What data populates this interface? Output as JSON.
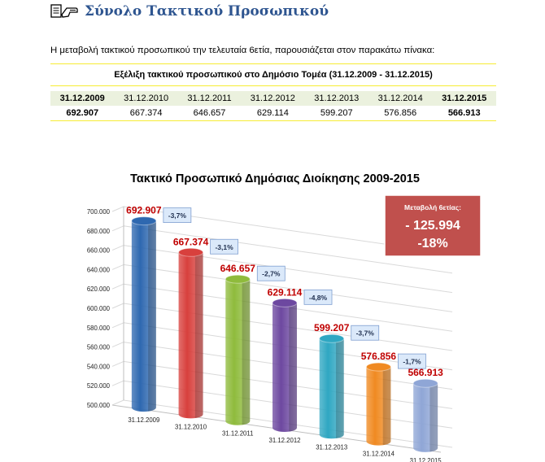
{
  "header": {
    "title": "Σύνολο Τακτικού Προσωπικού",
    "icon": "document-hand-icon"
  },
  "intro_text": "Η μεταβολή τακτικού προσωπικού την τελευταία 6ετία, παρουσιάζεται στον παρακάτω πίνακα:",
  "table": {
    "caption": "Εξέλιξη τακτικού προσωπικού στο Δημόσιο Τομέα (31.12.2009 - 31.12.2015)",
    "years": [
      "31.12.2009",
      "31.12.2010",
      "31.12.2011",
      "31.12.2012",
      "31.12.2013",
      "31.12.2014",
      "31.12.2015"
    ],
    "values": [
      "692.907",
      "667.374",
      "646.657",
      "629.114",
      "599.207",
      "576.856",
      "566.913"
    ],
    "bold_columns": [
      0,
      6
    ]
  },
  "chart_data": {
    "type": "bar",
    "title": "Τακτικό Προσωπικό Δημόσιας Διοίκησης 2009-2015",
    "xlabel": "",
    "ylabel": "",
    "categories": [
      "31.12.2009",
      "31.12.2010",
      "31.12.2011",
      "31.12.2012",
      "31.12.2013",
      "31.12.2014",
      "31.12.2015"
    ],
    "values": [
      692907,
      667374,
      646657,
      629114,
      599207,
      576856,
      566913
    ],
    "value_labels": [
      "692.907",
      "667.374",
      "646.657",
      "629.114",
      "599.207",
      "576.856",
      "566.913"
    ],
    "change_labels": [
      "-3,7%",
      "-3,1%",
      "-2,7%",
      "-4,8%",
      "-3,7%",
      "-1,7%"
    ],
    "ylim": [
      500000,
      700000
    ],
    "yticks": [
      500000,
      520000,
      540000,
      560000,
      580000,
      600000,
      620000,
      640000,
      660000,
      680000,
      700000
    ],
    "ytick_labels": [
      "500.000",
      "520.000",
      "540.000",
      "560.000",
      "580.000",
      "600.000",
      "620.000",
      "640.000",
      "660.000",
      "680.000",
      "700.000"
    ],
    "bar_colors": [
      "#2e68b0",
      "#d8403d",
      "#8fbb3c",
      "#6d48a0",
      "#2fa7c2",
      "#f08a22",
      "#8fa6d6"
    ],
    "grid": true,
    "style": "3d-cylinder",
    "callout": {
      "title": "Μεταβολή 6ετίας:",
      "value": "- 125.994",
      "percent": "-18%",
      "color": "#c0504d"
    },
    "value_label_color": "#c00000",
    "change_box_color": "#dbe9fa"
  }
}
